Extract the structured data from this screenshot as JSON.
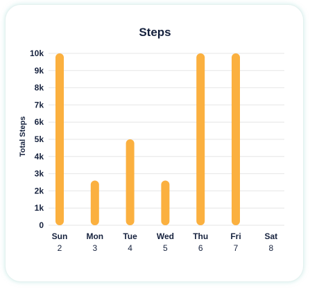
{
  "chart_data": {
    "type": "bar",
    "title": "Steps",
    "ylabel": "Total Steps",
    "xlabel": "",
    "categories": [
      "Sun",
      "Mon",
      "Tue",
      "Wed",
      "Thu",
      "Fri",
      "Sat"
    ],
    "dates": [
      "2",
      "3",
      "4",
      "5",
      "6",
      "7",
      "8"
    ],
    "values": [
      10000,
      2600,
      5000,
      2600,
      10000,
      10000,
      0
    ],
    "ylim": [
      0,
      10000
    ],
    "yticks": [
      "0",
      "1k",
      "2k",
      "3k",
      "4k",
      "5k",
      "6k",
      "7k",
      "8k",
      "9k",
      "10k"
    ],
    "grid": true,
    "bar_color": "#fbb03f",
    "grid_color": "#e6e6e6"
  }
}
